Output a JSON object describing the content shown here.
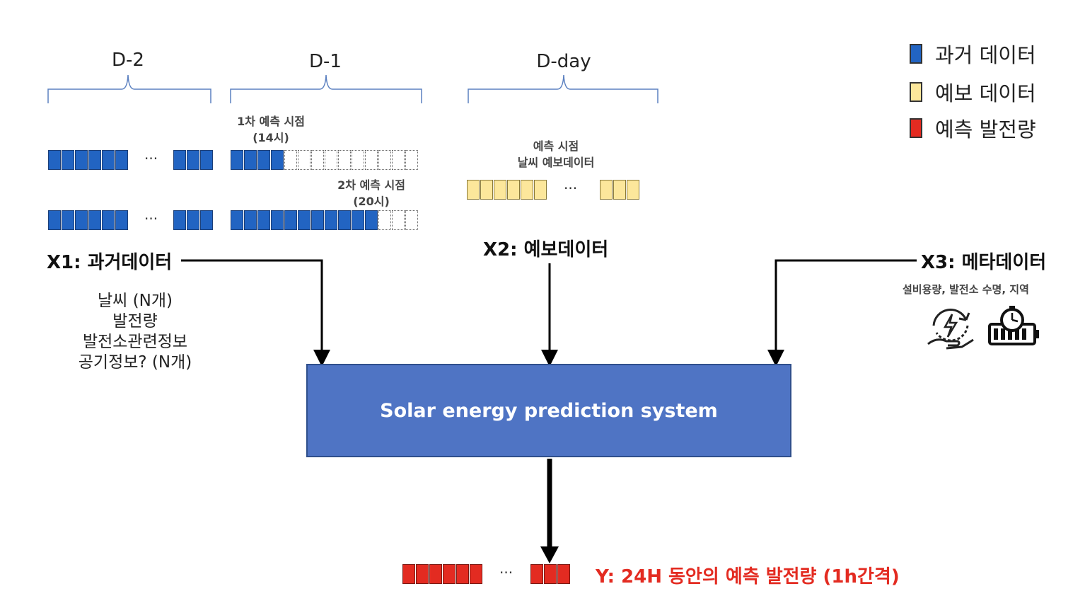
{
  "days": {
    "d2": "D-2",
    "d1": "D-1",
    "dday": "D-day"
  },
  "notes": {
    "first_forecast": [
      "1차 예측 시점",
      "(14시)"
    ],
    "second_forecast": [
      "2차 예측 시점",
      "(20시)"
    ],
    "forecast_time": [
      "예측 시점",
      "날씨 예보데이터"
    ]
  },
  "ellipsis": "···",
  "x1": {
    "label": "X1: 과거데이터",
    "items": [
      "날씨 (N개)",
      "발전량",
      "발전소관련정보",
      "공기정보? (N개)"
    ]
  },
  "x2": {
    "label": "X2: 예보데이터"
  },
  "x3": {
    "label": "X3: 메타데이터",
    "desc": "설비용량, 발전소 수명, 지역"
  },
  "system": {
    "label": "Solar energy prediction system"
  },
  "output": {
    "label": "Y: 24H 동안의 예측 발전량 (1h간격)"
  },
  "legend": [
    {
      "label": "과거 데이터",
      "color": "#2264c2"
    },
    {
      "label": "예보 데이터",
      "color": "#fce79b"
    },
    {
      "label": "예측 발전량",
      "color": "#e32b21"
    }
  ],
  "icons": [
    "hand-energy-icon",
    "battery-clock-icon"
  ]
}
